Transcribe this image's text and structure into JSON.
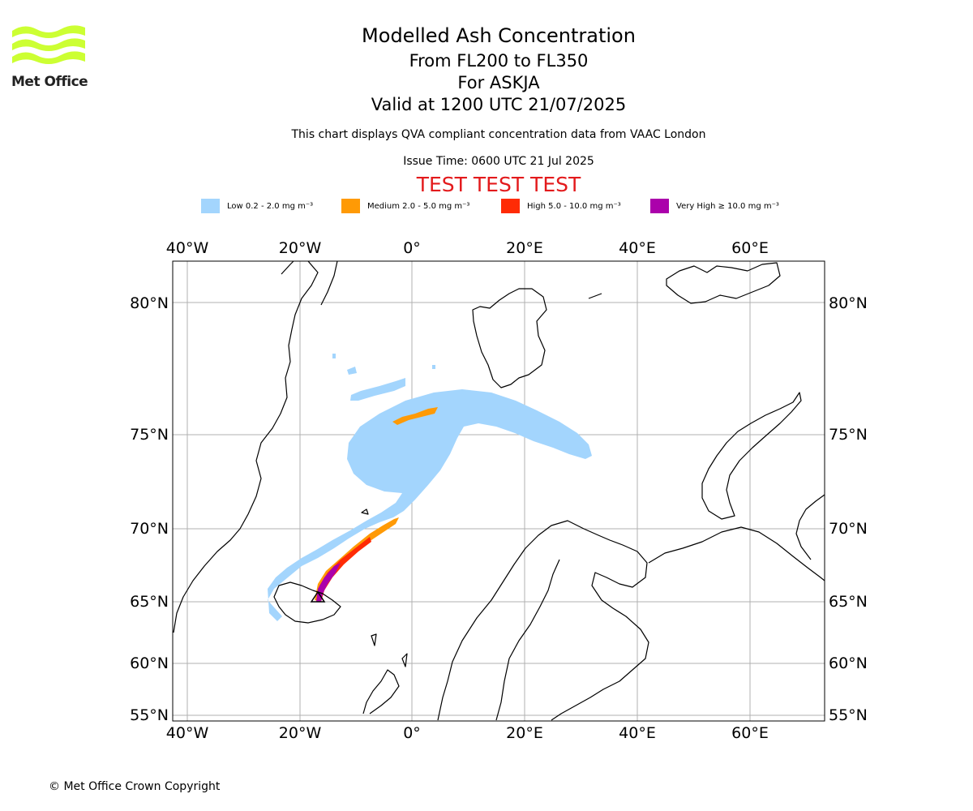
{
  "header": {
    "title": "Modelled Ash Concentration",
    "levels": "From FL200 to FL350",
    "volcano": "For ASKJA",
    "valid": "Valid at 1200 UTC 21/07/2025",
    "subtitle": "This chart displays QVA compliant concentration data from VAAC London",
    "issue_time": "Issue Time: 0600 UTC 21 Jul 2025",
    "test_banner": "TEST TEST TEST"
  },
  "logo": {
    "text": "Met Office",
    "wave_color": "#ccff33"
  },
  "legend": [
    {
      "label": "Low 0.2 - 2.0 mg m⁻³",
      "color": "#a3d5fd"
    },
    {
      "label": "Medium 2.0 - 5.0 mg m⁻³",
      "color": "#ff9a05"
    },
    {
      "label": "High 5.0 - 10.0 mg m⁻³",
      "color": "#ff2b05"
    },
    {
      "label": "Very High ≥ 10.0 mg m⁻³",
      "color": "#ab01ab"
    }
  ],
  "map": {
    "lon_ticks": [
      "40°W",
      "20°W",
      "0°",
      "20°E",
      "40°E",
      "60°E"
    ],
    "lat_ticks": [
      "80°N",
      "75°N",
      "70°N",
      "65°N",
      "60°N",
      "55°N"
    ],
    "extent": {
      "lon": [
        -42.5,
        73.5
      ],
      "lat": [
        54.7,
        81.6
      ]
    },
    "grid": true,
    "volcano_marker": "triangle",
    "volcano_location": {
      "lon": -16.75,
      "lat": 65.03
    }
  },
  "footer": {
    "copyright": "© Met Office Crown Copyright"
  }
}
